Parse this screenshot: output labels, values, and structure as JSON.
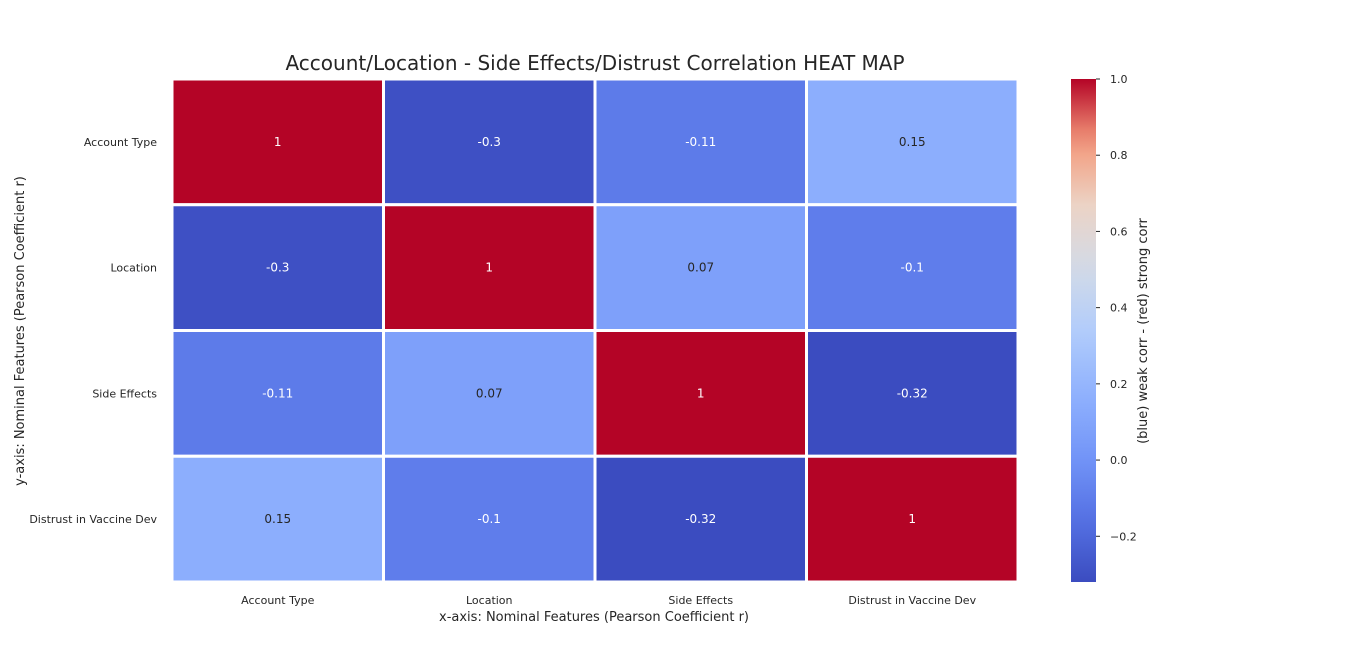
{
  "chart_data": {
    "type": "heatmap",
    "title": "Account/Location - Side Effects/Distrust Correlation HEAT MAP",
    "xlabel": "x-axis: Nominal Features (Pearson Coefficient r)",
    "ylabel": "y-axis: Nominal Features (Pearson Coefficient r)",
    "x_categories": [
      "Account Type",
      "Location",
      "Side Effects",
      "Distrust in Vaccine Dev"
    ],
    "y_categories": [
      "Account Type",
      "Location",
      "Side Effects",
      "Distrust in Vaccine Dev"
    ],
    "matrix": [
      [
        1,
        -0.3,
        -0.11,
        0.15
      ],
      [
        -0.3,
        1,
        0.07,
        -0.1
      ],
      [
        -0.11,
        0.07,
        1,
        -0.32
      ],
      [
        0.15,
        -0.1,
        -0.32,
        1
      ]
    ],
    "cell_labels": [
      [
        "1",
        "-0.3",
        "-0.11",
        "0.15"
      ],
      [
        "-0.3",
        "1",
        "0.07",
        "-0.1"
      ],
      [
        "-0.11",
        "0.07",
        "1",
        "-0.32"
      ],
      [
        "0.15",
        "-0.1",
        "-0.32",
        "1"
      ]
    ],
    "colormap": "coolwarm",
    "colorbar": {
      "label": "(blue) weak corr - (red) strong corr",
      "range": [
        -0.32,
        1.0
      ],
      "ticks": [
        -0.2,
        0.0,
        0.2,
        0.4,
        0.6,
        0.8,
        1.0
      ],
      "tick_labels": [
        "−0.2",
        "0.0",
        "0.2",
        "0.4",
        "0.6",
        "0.8",
        "1.0"
      ]
    }
  }
}
